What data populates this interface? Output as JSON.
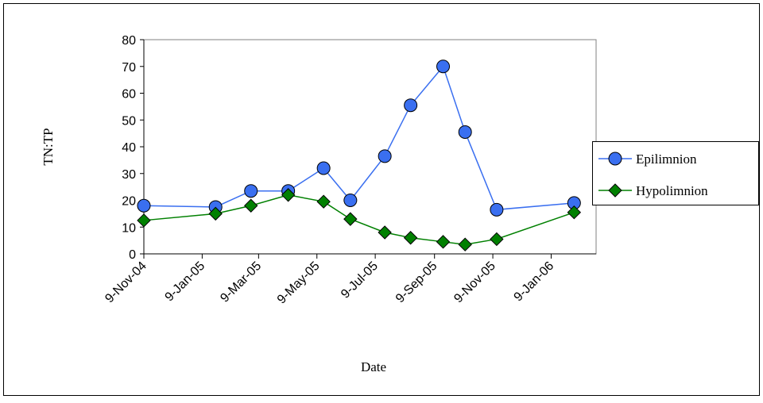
{
  "chart_data": {
    "type": "line",
    "x_label": "Date",
    "y_label": "TN:TP",
    "x": [
      "2004-11-09",
      "2005-01-23",
      "2005-03-01",
      "2005-04-09",
      "2005-05-16",
      "2005-06-13",
      "2005-07-19",
      "2005-08-15",
      "2005-09-18",
      "2005-10-11",
      "2005-11-13",
      "2006-02-02"
    ],
    "series": [
      {
        "name": "Epilimnion",
        "color": "#3a6ff0",
        "marker": "circle",
        "values": [
          18,
          17.5,
          23.5,
          23.5,
          32,
          20,
          36.5,
          55.5,
          70,
          45.5,
          16.5,
          19
        ]
      },
      {
        "name": "Hypolimnion",
        "color": "#008000",
        "marker": "diamond",
        "values": [
          12.5,
          15,
          18,
          22,
          19.5,
          13,
          8,
          6,
          4.5,
          3.5,
          5.5,
          15.5
        ]
      }
    ],
    "xlim": [
      "2004-11-09",
      "2006-02-25"
    ],
    "xticks": [
      {
        "value": "2004-11-09",
        "label": "9-Nov-04"
      },
      {
        "value": "2005-01-09",
        "label": "9-Jan-05"
      },
      {
        "value": "2005-03-09",
        "label": "9-Mar-05"
      },
      {
        "value": "2005-05-09",
        "label": "9-May-05"
      },
      {
        "value": "2005-07-09",
        "label": "9-Jul-05"
      },
      {
        "value": "2005-09-09",
        "label": "9-Sep-05"
      },
      {
        "value": "2005-11-09",
        "label": "9-Nov-05"
      },
      {
        "value": "2006-01-09",
        "label": "9-Jan-06"
      }
    ],
    "ylim": [
      0,
      80
    ],
    "yticks": [
      0,
      10,
      20,
      30,
      40,
      50,
      60,
      70,
      80
    ],
    "legend": "right"
  }
}
